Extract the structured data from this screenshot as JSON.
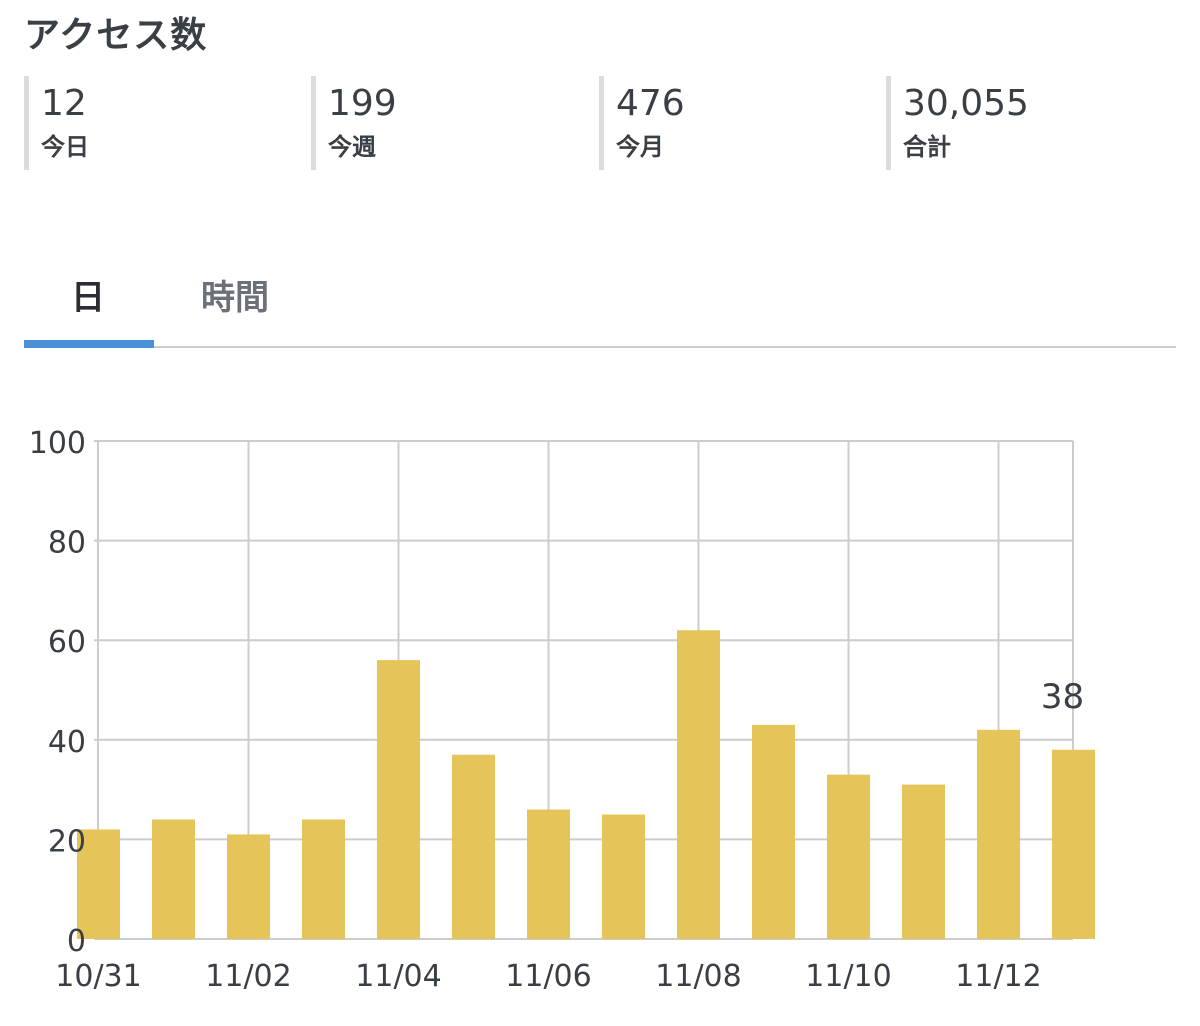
{
  "title": "アクセス数",
  "stats": [
    {
      "value": "12",
      "label": "今日"
    },
    {
      "value": "199",
      "label": "今週"
    },
    {
      "value": "476",
      "label": "今月"
    },
    {
      "value": "30,055",
      "label": "合計"
    }
  ],
  "tabs": [
    {
      "label": "日",
      "active": true
    },
    {
      "label": "時間",
      "active": false
    }
  ],
  "colors": {
    "bar": "#e5c55a",
    "tab_active": "#4a90d9",
    "grid": "#cccccc"
  },
  "chart_data": {
    "type": "bar",
    "categories": [
      "10/31",
      "11/01",
      "11/02",
      "11/03",
      "11/04",
      "11/05",
      "11/06",
      "11/07",
      "11/08",
      "11/09",
      "11/10",
      "11/11",
      "11/12",
      "11/13"
    ],
    "tick_labels": [
      "10/31",
      "11/02",
      "11/04",
      "11/06",
      "11/08",
      "11/10",
      "11/12"
    ],
    "values": [
      22,
      24,
      21,
      24,
      56,
      37,
      26,
      25,
      62,
      43,
      33,
      31,
      42,
      38
    ],
    "ylim": [
      0,
      100
    ],
    "yticks": [
      0,
      20,
      40,
      60,
      80,
      100
    ],
    "grid": true,
    "annotations": [
      {
        "category": "11/13",
        "text": "38"
      }
    ]
  }
}
